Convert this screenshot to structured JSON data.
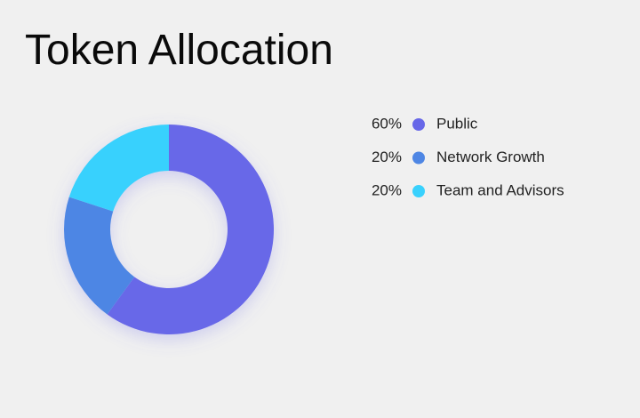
{
  "chart_data": {
    "type": "donut",
    "title": "Token Allocation",
    "categories": [
      "Public",
      "Network Growth",
      "Team and Advisors"
    ],
    "values": [
      60,
      20,
      20
    ],
    "value_labels": [
      "60%",
      "20%",
      "20%"
    ],
    "colors": [
      "#6767e8",
      "#4e86e4",
      "#39d1fd"
    ],
    "legend": "right"
  }
}
